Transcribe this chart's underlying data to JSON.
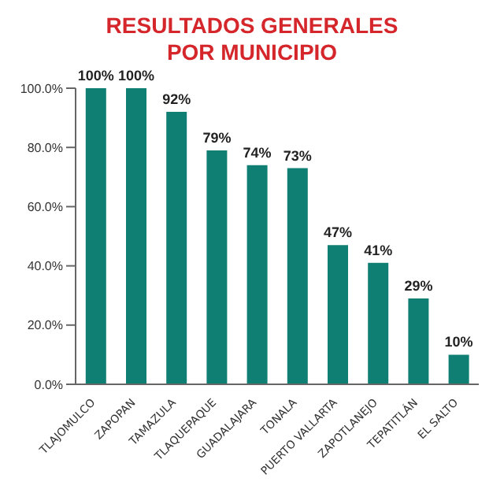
{
  "chart_data": {
    "type": "bar",
    "title": "RESULTADOS GENERALES POR MUNICIPIO",
    "categories": [
      "TLAJOMULCO",
      "ZAPOPAN",
      "TAMAZULA",
      "TLAQUEPAQUE",
      "GUADALAJARA",
      "TONALA",
      "PUERTO VALLARTA",
      "ZAPOTLANEJO",
      "TEPATITLÁN",
      "EL SALTO"
    ],
    "values": [
      100,
      100,
      92,
      79,
      74,
      73,
      47,
      41,
      29,
      10
    ],
    "value_labels": [
      "100%",
      "100%",
      "92%",
      "79%",
      "74%",
      "73%",
      "47%",
      "41%",
      "29%",
      "10%"
    ],
    "color": "#0f7f74",
    "ylim": [
      0,
      100
    ],
    "yticks": [
      {
        "value": 0,
        "label": "0.0%"
      },
      {
        "value": 20,
        "label": "20.0%"
      },
      {
        "value": 40,
        "label": "40.0%"
      },
      {
        "value": 60,
        "label": "60.0%"
      },
      {
        "value": 80,
        "label": "80.0%"
      },
      {
        "value": 100,
        "label": "100.0%"
      }
    ],
    "grid": false
  }
}
